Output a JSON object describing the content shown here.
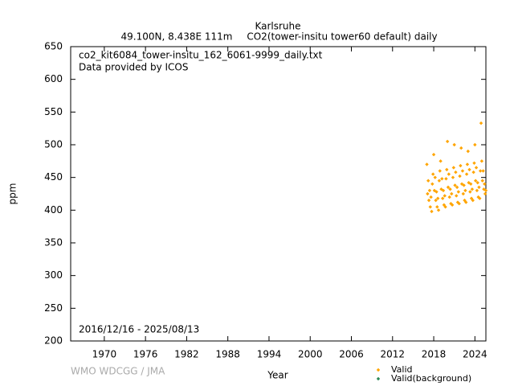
{
  "chart_data": {
    "type": "scatter",
    "title": "Karlsruhe",
    "subtitle_left": "49.100N, 8.438E 111m",
    "subtitle_right": "CO2(tower-insitu tower60 default) daily",
    "file_label": "co2_kit6084_tower-insitu_162_6061-9999_daily.txt",
    "provider_label": "Data provided by ICOS",
    "period_label": "2016/12/16 - 2025/08/13",
    "credit": "WMO WDCGG / JMA",
    "xlabel": "Year",
    "ylabel": "ppm",
    "xlim": [
      1965.1,
      2025.6
    ],
    "ylim": [
      200,
      650
    ],
    "xticks": [
      1970,
      1976,
      1982,
      1988,
      1994,
      2000,
      2006,
      2012,
      2018,
      2024
    ],
    "yticks": [
      200,
      250,
      300,
      350,
      400,
      450,
      500,
      550,
      600,
      650
    ],
    "series": [
      {
        "name": "Valid",
        "color": "#ffa500",
        "x": [
          2017.0,
          2017.1,
          2017.2,
          2017.3,
          2017.4,
          2017.5,
          2017.6,
          2017.7,
          2017.8,
          2017.9,
          2018.0,
          2018.1,
          2018.2,
          2018.3,
          2018.4,
          2018.5,
          2018.6,
          2018.7,
          2018.8,
          2018.9,
          2019.0,
          2019.1,
          2019.2,
          2019.3,
          2019.4,
          2019.5,
          2019.6,
          2019.7,
          2019.8,
          2019.9,
          2020.0,
          2020.1,
          2020.2,
          2020.3,
          2020.4,
          2020.5,
          2020.6,
          2020.7,
          2020.8,
          2020.9,
          2021.0,
          2021.1,
          2021.2,
          2021.3,
          2021.4,
          2021.5,
          2021.6,
          2021.7,
          2021.8,
          2021.9,
          2022.0,
          2022.1,
          2022.2,
          2022.3,
          2022.4,
          2022.5,
          2022.6,
          2022.7,
          2022.8,
          2022.9,
          2023.0,
          2023.1,
          2023.2,
          2023.3,
          2023.4,
          2023.5,
          2023.6,
          2023.7,
          2023.8,
          2023.9,
          2024.0,
          2024.1,
          2024.2,
          2024.3,
          2024.4,
          2024.5,
          2024.6,
          2024.7,
          2024.8,
          2024.9,
          2025.0,
          2025.1,
          2025.2,
          2025.3,
          2025.4,
          2025.5,
          2025.6
        ],
        "values": [
          470,
          425,
          445,
          415,
          430,
          405,
          420,
          398,
          440,
          455,
          485,
          430,
          450,
          415,
          428,
          405,
          418,
          400,
          445,
          460,
          475,
          432,
          448,
          418,
          430,
          408,
          422,
          405,
          448,
          462,
          505,
          435,
          455,
          420,
          432,
          410,
          425,
          408,
          450,
          465,
          500,
          438,
          458,
          422,
          435,
          412,
          428,
          410,
          452,
          468,
          495,
          440,
          460,
          425,
          438,
          415,
          430,
          412,
          455,
          470,
          490,
          442,
          462,
          428,
          440,
          418,
          432,
          415,
          458,
          472,
          500,
          445,
          465,
          430,
          442,
          420,
          435,
          418,
          460,
          533,
          475,
          445,
          460,
          432,
          440,
          425,
          430
        ]
      },
      {
        "name": "Valid(background)",
        "color": "#2e8b57",
        "x": [],
        "values": []
      }
    ]
  }
}
